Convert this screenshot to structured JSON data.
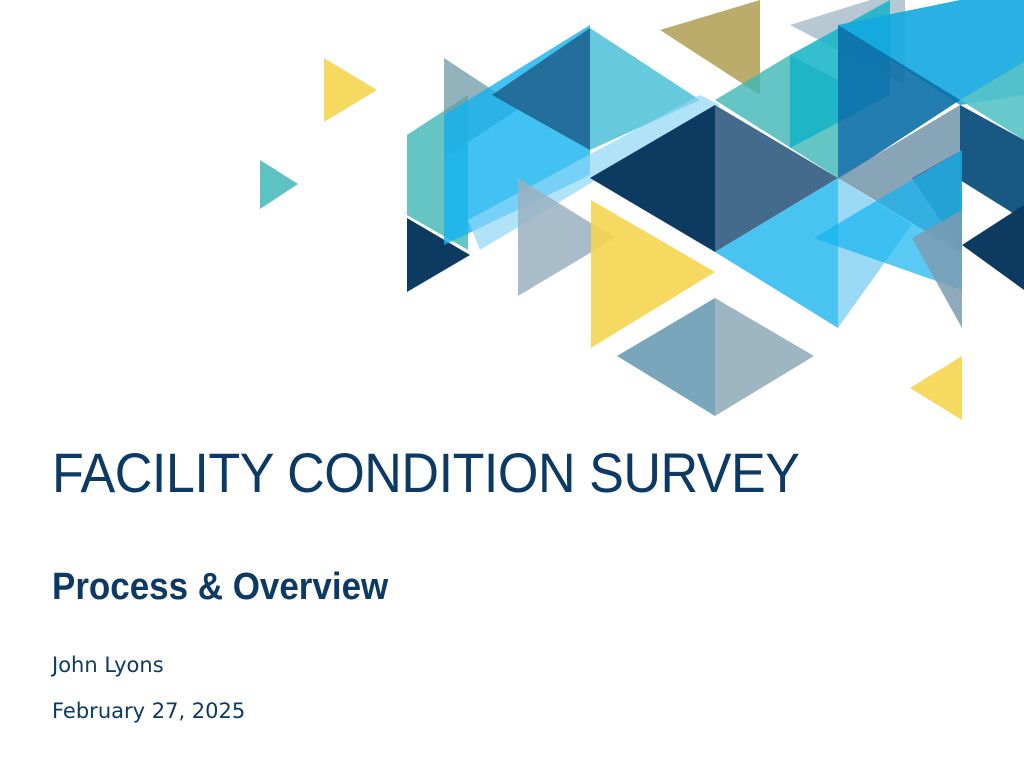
{
  "slide": {
    "title": "FACILITY CONDITION SURVEY",
    "subtitle": "Process & Overview",
    "author": "John Lyons",
    "date": "February 27, 2025"
  },
  "colors": {
    "text": "#0c3a64",
    "navy": "#0c3a60",
    "slate": "#456b8c",
    "sky": "#12b3f0",
    "teal": "#3fb7b7",
    "gold": "#f5d54f",
    "olive": "#b7a863",
    "grey_blue": "#7b9bb0"
  }
}
